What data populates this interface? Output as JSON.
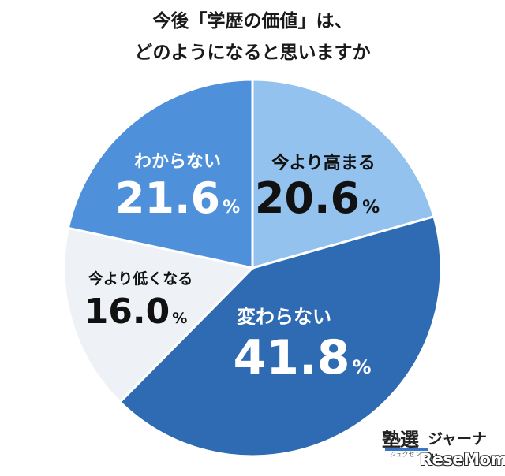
{
  "title_line1": "今後「学歴の価値」は、",
  "title_line2": "どのようになると思いますか",
  "chart_data": {
    "type": "pie",
    "title": "今後「学歴の価値」は、どのようになると思いますか",
    "slices": [
      {
        "label": "今より高まる",
        "value": 20.6,
        "display": "20.6",
        "color": "#93c2ee",
        "label_color": "#111111"
      },
      {
        "label": "変わらない",
        "value": 41.8,
        "display": "41.8",
        "color": "#2f6bb3",
        "label_color": "#ffffff"
      },
      {
        "label": "今より低くなる",
        "value": 16.0,
        "display": "16.0",
        "color": "#eef2f6",
        "label_color": "#111111"
      },
      {
        "label": "わからない",
        "value": 21.6,
        "display": "21.6",
        "color": "#4e91da",
        "label_color": "#ffffff"
      }
    ],
    "percent_sign": "%",
    "start": "12 o'clock",
    "direction": "clockwise"
  },
  "logo": {
    "juku": "塾選",
    "kana": "ジャーナル",
    "sub": "ジュクセン",
    "resemom": "ReseMom"
  }
}
